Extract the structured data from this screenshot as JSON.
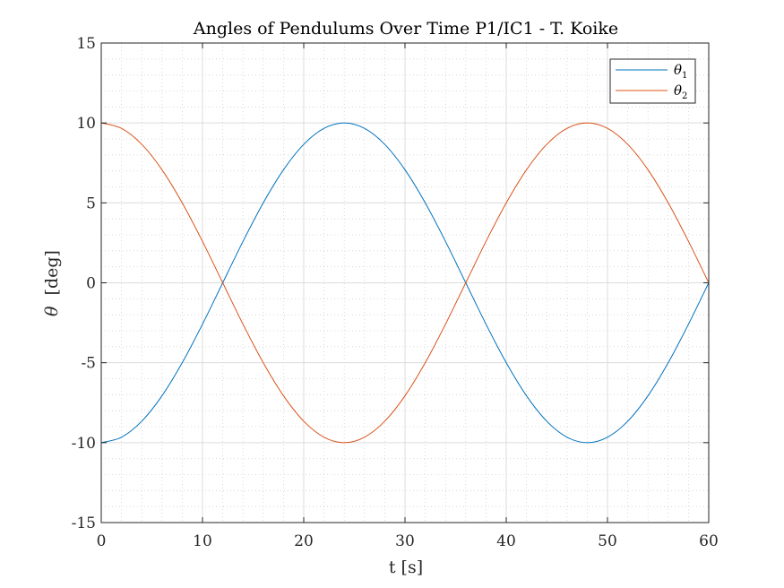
{
  "chart_data": {
    "type": "line",
    "title": "Angles of Pendulums Over Time P1/IC1 - T. Koike",
    "xlabel": "t [s]",
    "ylabel_symbol": "θ",
    "ylabel_unit": "[deg]",
    "xlim": [
      0,
      60
    ],
    "ylim": [
      -15,
      15
    ],
    "x_ticks": [
      "0",
      "10",
      "20",
      "30",
      "40",
      "50",
      "60"
    ],
    "y_ticks": [
      "15",
      "10",
      "5",
      "0",
      "-5",
      "-10",
      "-15"
    ],
    "grid": true,
    "minor_grid": true,
    "legend_position": "top-right",
    "series": [
      {
        "name": "θ1",
        "color": "#0072BD",
        "x": [
          0,
          2,
          4,
          6,
          8,
          10,
          12,
          14,
          16,
          18,
          20,
          22,
          24,
          26,
          28,
          30,
          32,
          34,
          36,
          38,
          40,
          42,
          44,
          46,
          48,
          50,
          52,
          54,
          56,
          58,
          60
        ],
        "y": [
          -10.0,
          -9.66,
          -8.66,
          -7.07,
          -5.0,
          -2.59,
          0.0,
          2.59,
          5.0,
          7.07,
          8.66,
          9.66,
          10.0,
          9.66,
          8.66,
          7.07,
          5.0,
          2.59,
          0.0,
          -2.59,
          -5.0,
          -7.07,
          -8.66,
          -9.66,
          -10.0,
          -9.66,
          -8.66,
          -7.07,
          -5.0,
          -2.59,
          0.0
        ]
      },
      {
        "name": "θ2",
        "color": "#D95319",
        "x": [
          0,
          2,
          4,
          6,
          8,
          10,
          12,
          14,
          16,
          18,
          20,
          22,
          24,
          26,
          28,
          30,
          32,
          34,
          36,
          38,
          40,
          42,
          44,
          46,
          48,
          50,
          52,
          54,
          56,
          58,
          60
        ],
        "y": [
          10.0,
          9.66,
          8.66,
          7.07,
          5.0,
          2.59,
          0.0,
          -2.59,
          -5.0,
          -7.07,
          -8.66,
          -9.66,
          -10.0,
          -9.66,
          -8.66,
          -7.07,
          -5.0,
          -2.59,
          0.0,
          2.59,
          5.0,
          7.07,
          8.66,
          9.66,
          10.0,
          9.66,
          8.66,
          7.07,
          5.0,
          2.59,
          0.0
        ]
      }
    ]
  }
}
